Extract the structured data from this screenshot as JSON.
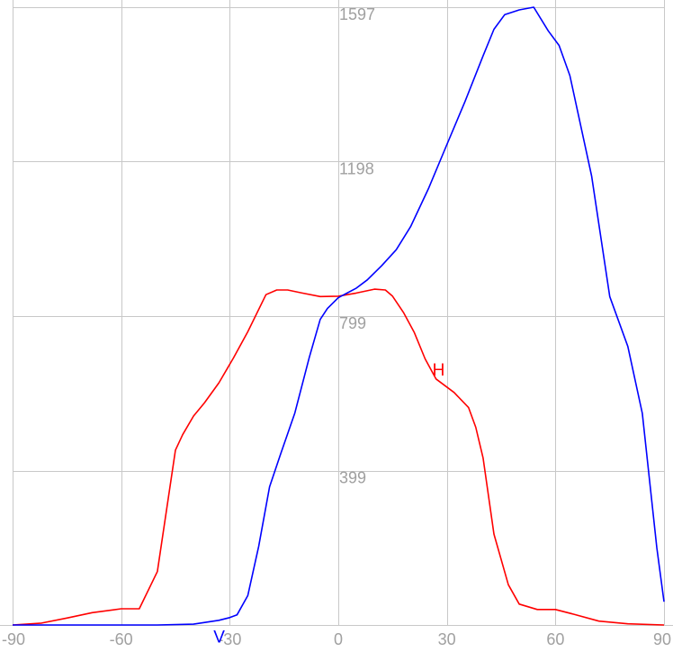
{
  "chart_data": {
    "type": "line",
    "xlim": [
      -90,
      90
    ],
    "ylim": [
      0,
      1597
    ],
    "x_ticks": [
      -90,
      -60,
      -30,
      0,
      30,
      60,
      90
    ],
    "x_tick_labels": [
      "-90",
      "-60",
      "-30",
      "0",
      "30",
      "60",
      "90"
    ],
    "y_ticks": [
      399,
      799,
      1198,
      1597
    ],
    "y_tick_labels": [
      "399",
      "799",
      "1198",
      "1597"
    ],
    "grid": true,
    "background": "#ffffff",
    "grid_color": "#c8c8c8",
    "tick_label_color": "#a0a0a0",
    "series": [
      {
        "name": "H",
        "color": "#ff0000",
        "x": [
          -90,
          -82,
          -75,
          -68,
          -60,
          -55,
          -50,
          -45,
          -43,
          -40,
          -37,
          -33,
          -29,
          -25,
          -20,
          -17,
          -14,
          -10,
          -5,
          0,
          5,
          10,
          13,
          15,
          18,
          21,
          24,
          27,
          32,
          36,
          38,
          40,
          43,
          47,
          50,
          55,
          60,
          65,
          72,
          80,
          90
        ],
        "y": [
          0,
          5,
          18,
          32,
          42,
          42,
          138,
          452,
          492,
          540,
          574,
          626,
          690,
          758,
          854,
          866,
          866,
          858,
          849,
          850,
          858,
          868,
          866,
          850,
          808,
          756,
          688,
          636,
          601,
          562,
          511,
          432,
          235,
          104,
          54,
          40,
          40,
          28,
          10,
          3,
          0
        ]
      },
      {
        "name": "V",
        "color": "#0000ff",
        "x": [
          -90,
          -80,
          -70,
          -60,
          -50,
          -40,
          -33,
          -30,
          -28,
          -25,
          -22,
          -19,
          -16,
          -12,
          -8,
          -5,
          -3,
          0,
          5,
          8,
          12,
          16,
          20,
          25,
          30,
          35,
          40,
          43,
          46,
          50,
          54,
          58,
          61,
          64,
          70,
          75,
          80,
          84,
          88,
          90
        ],
        "y": [
          0,
          0,
          0,
          0,
          0,
          2,
          12,
          19,
          26,
          76,
          203,
          357,
          440,
          548,
          692,
          790,
          818,
          846,
          871,
          892,
          929,
          970,
          1030,
          1130,
          1242,
          1353,
          1471,
          1540,
          1578,
          1590,
          1597,
          1536,
          1498,
          1420,
          1160,
          849,
          720,
          547,
          200,
          60
        ]
      }
    ],
    "series_labels": [
      {
        "text": "H",
        "x": 26,
        "y": 666
      },
      {
        "text": "V",
        "x": -34.5,
        "y": -25
      }
    ]
  }
}
